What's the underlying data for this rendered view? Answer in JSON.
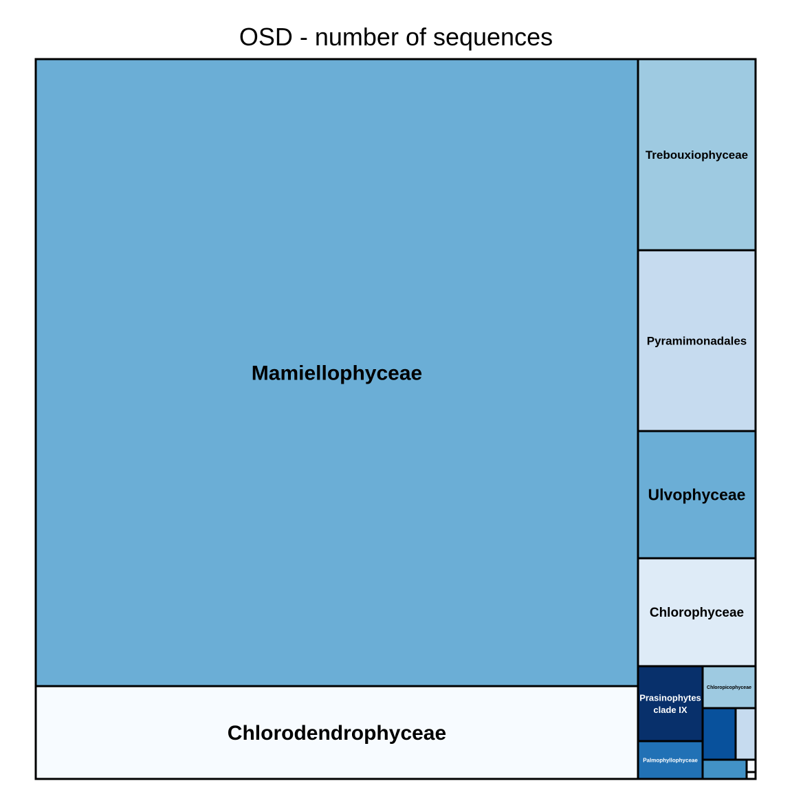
{
  "chart_data": {
    "type": "treemap",
    "title": "OSD - number of sequences",
    "tiles": [
      {
        "label": "Mamiellophyceae",
        "color": "#6baed6",
        "text_color": "#000000"
      },
      {
        "label": "Chlorodendrophyceae",
        "color": "#f7fbff",
        "text_color": "#000000"
      },
      {
        "label": "Trebouxiophyceae",
        "color": "#9ecae1",
        "text_color": "#000000"
      },
      {
        "label": "Pyramimonadales",
        "color": "#c6dbef",
        "text_color": "#000000"
      },
      {
        "label": "Ulvophyceae",
        "color": "#6baed6",
        "text_color": "#000000"
      },
      {
        "label": "Chlorophyceae",
        "color": "#deebf7",
        "text_color": "#000000"
      },
      {
        "label": "Prasinophytes\nclade IX",
        "color": "#08306b",
        "text_color": "#ffffff"
      },
      {
        "label": "Palmophyllophyceae",
        "color": "#2171b5",
        "text_color": "#ffffff"
      },
      {
        "label": "Chloropicophyceae",
        "color": "#9ecae1",
        "text_color": "#000000"
      },
      {
        "label": "",
        "color": "#08519c",
        "text_color": "#ffffff"
      },
      {
        "label": "",
        "color": "#c6dbef",
        "text_color": "#000000"
      },
      {
        "label": "",
        "color": "#4292c6",
        "text_color": "#ffffff"
      },
      {
        "label": "",
        "color": "#f7fbff",
        "text_color": "#000000"
      },
      {
        "label": "",
        "color": "#f7fbff",
        "text_color": "#000000"
      }
    ]
  }
}
